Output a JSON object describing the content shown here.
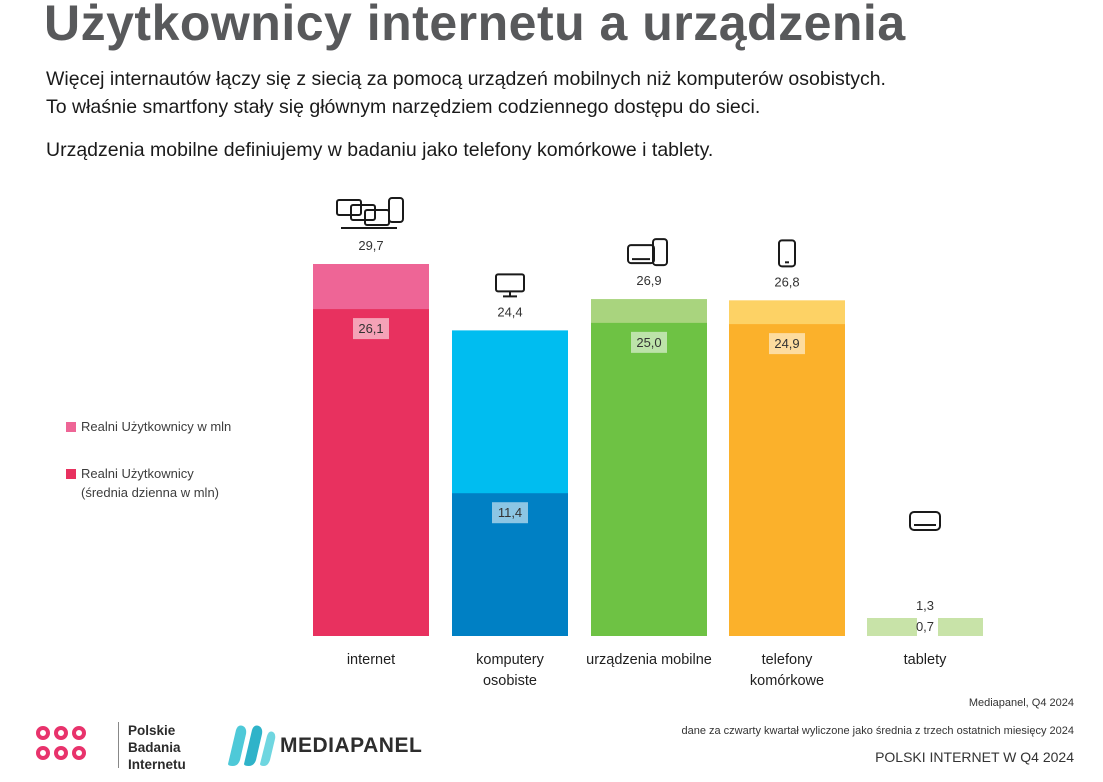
{
  "title": "Użytkownicy internetu a urządzenia",
  "intro": {
    "line1": "Więcej internautów łączy się z siecią za pomocą urządzeń mobilnych niż komputerów osobistych.",
    "line2": "To właśnie smartfony stały się głównym narzędziem codziennego dostępu do sieci.",
    "line3": "Urządzenia mobilne definiujemy w badaniu jako telefony komórkowe i tablety."
  },
  "legend": {
    "item1": "Realni Użytkownicy w mln",
    "item2_line1": "Realni Użytkownicy",
    "item2_line2": "(średnia dzienna w mln)"
  },
  "chart_data": {
    "type": "bar",
    "categories": [
      "internet",
      "komputery osobiste",
      "urządzenia mobilne",
      "telefony komórkowe",
      "tablety"
    ],
    "category_labels": [
      [
        "internet"
      ],
      [
        "komputery",
        "osobiste"
      ],
      [
        "urządzenia mobilne"
      ],
      [
        "telefony",
        "komórkowe"
      ],
      [
        "tablety"
      ]
    ],
    "series": [
      {
        "name": "Realni Użytkownicy w mln",
        "values": [
          29.7,
          24.4,
          26.9,
          26.8,
          1.3
        ],
        "labels": [
          "29,7",
          "24,4",
          "26,9",
          "26,8",
          "1,3"
        ]
      },
      {
        "name": "Realni Użytkownicy (średnia dzienna w mln)",
        "values": [
          26.1,
          11.4,
          25.0,
          24.9,
          0.7
        ],
        "labels": [
          "26,1",
          "11,4",
          "25,0",
          "24,9",
          "0,7"
        ]
      }
    ],
    "icons": [
      "multi-device-icon",
      "monitor-icon",
      "tablet-phone-icon",
      "smartphone-icon",
      "tablet-icon"
    ],
    "colors": {
      "total": [
        "#ee6596",
        "#00bdf0",
        "#a9d47e",
        "#fdd265",
        "#cde5b7"
      ],
      "daily": [
        "#e8315f",
        "#0080c4",
        "#6ec244",
        "#fbb12b",
        "#c8e3a8"
      ],
      "legend_total": "#ee6596",
      "legend_daily": "#e8315f"
    },
    "ylim": [
      0,
      30
    ],
    "grid": false,
    "legend_position": "left"
  },
  "logos": {
    "pbi": {
      "line1": "Polskie",
      "line2": "Badania",
      "line3": "Internetu"
    },
    "mediapanel": "MEDIAPANEL"
  },
  "footer": {
    "source": "Mediapanel, Q4 2024",
    "note": "dane za czwarty kwartał wyliczone jako średnia z trzech ostatnich miesięcy 2024",
    "publication": "POLSKI INTERNET W Q4 2024"
  }
}
